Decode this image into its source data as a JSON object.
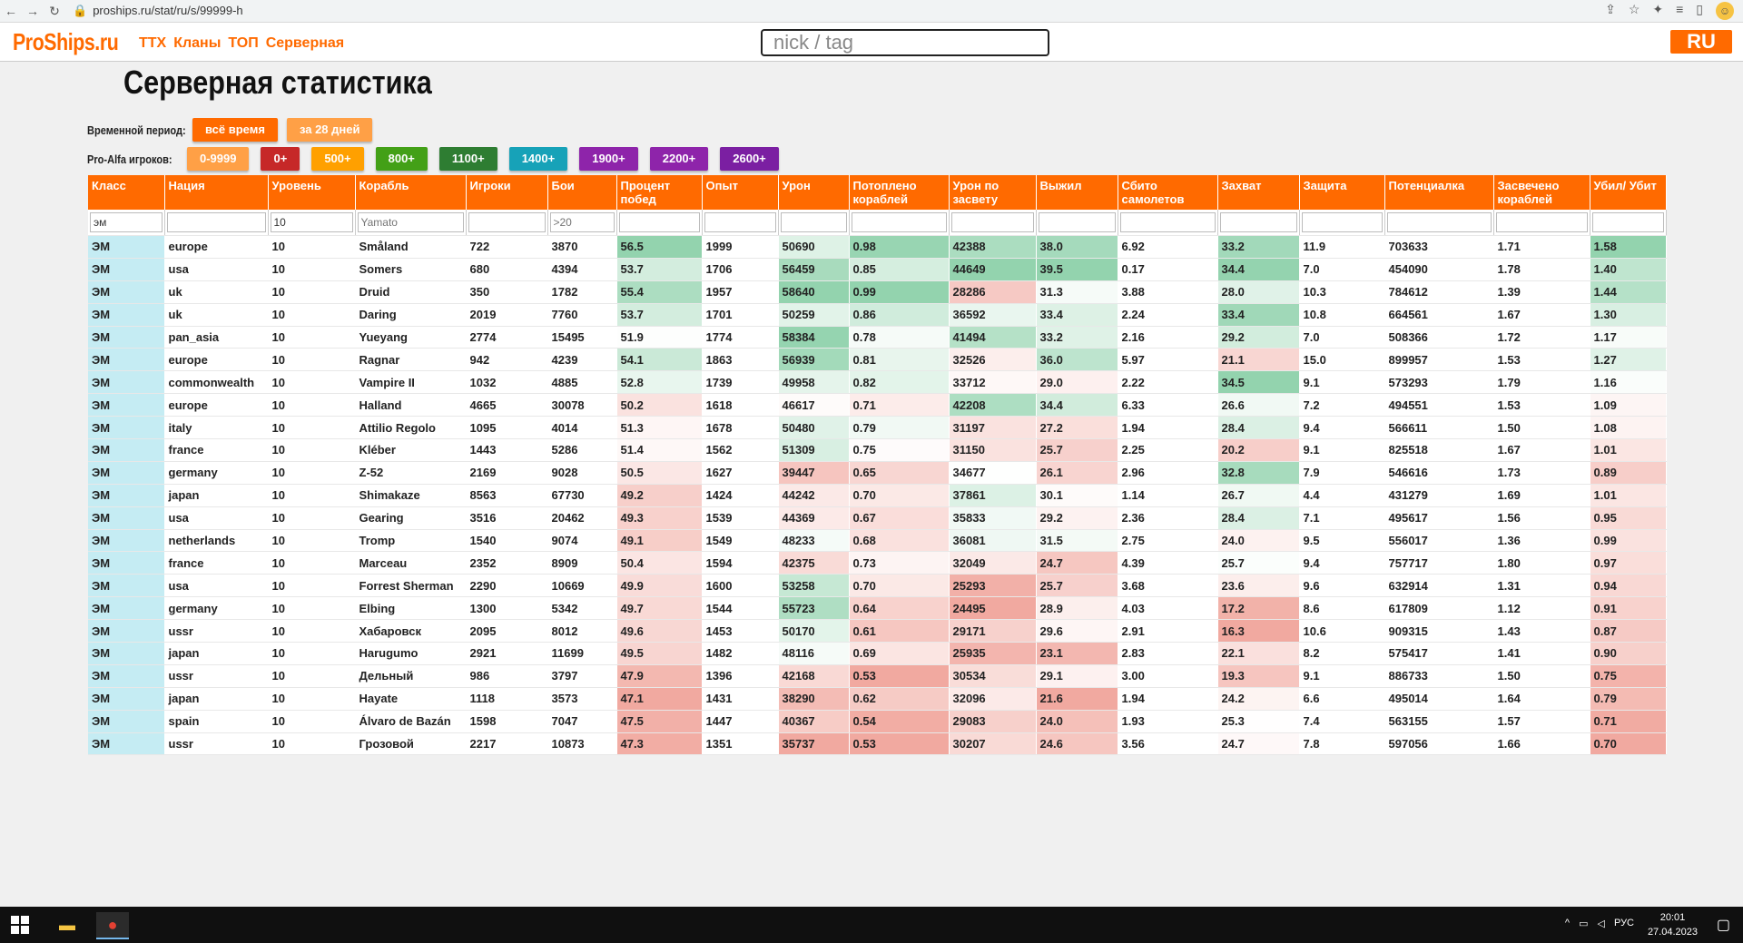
{
  "browser": {
    "url": "proships.ru/stat/ru/s/99999-h"
  },
  "header": {
    "logo": "ProShips.ru",
    "nav": [
      "ТТХ",
      "Кланы",
      "ТОП",
      "Серверная"
    ],
    "search_placeholder": "nick / tag",
    "lang": "RU"
  },
  "page": {
    "title": "Серверная статистика"
  },
  "filters": {
    "period_label": "Временной период:",
    "period_options": [
      {
        "label": "всё время",
        "color": "#ff6a00"
      },
      {
        "label": "за 28 дней",
        "color": "#ffa046"
      }
    ],
    "pa_label": "Pro-Alfa игроков:",
    "pa_options": [
      {
        "label": "0-9999",
        "color": "#ffa046"
      },
      {
        "label": "0+",
        "color": "#c62828"
      },
      {
        "label": "500+",
        "color": "#ffa000"
      },
      {
        "label": "800+",
        "color": "#43a017"
      },
      {
        "label": "1100+",
        "color": "#2e7d32"
      },
      {
        "label": "1400+",
        "color": "#17a2b8"
      },
      {
        "label": "1900+",
        "color": "#8e24aa"
      },
      {
        "label": "2200+",
        "color": "#8e24aa"
      },
      {
        "label": "2600+",
        "color": "#7b1fa2"
      }
    ]
  },
  "table": {
    "headers": [
      "Класс",
      "Нация",
      "Уровень",
      "Корабль",
      "Игроки",
      "Бои",
      "Процент побед",
      "Опыт",
      "Урон",
      "Потоплено кораблей",
      "Урон по засвету",
      "Выжил",
      "Сбито самолетов",
      "Захват",
      "Защита",
      "Потенциалка",
      "Засвечено кораблей",
      "Убил/ Убит"
    ],
    "filter_values": [
      "эм",
      "",
      "10",
      "",
      "",
      "",
      "",
      "",
      "",
      "",
      "",
      "",
      "",
      "",
      "",
      "",
      "",
      ""
    ],
    "filter_placeholders": [
      "",
      "",
      "",
      "Yamato",
      "",
      ">20",
      "",
      "",
      "",
      "",
      "",
      "",
      "",
      "",
      "",
      "",
      "",
      ""
    ],
    "rows": [
      [
        "ЭМ",
        "europe",
        "10",
        "Småland",
        "722",
        "3870",
        "56.5",
        "1999",
        "50690",
        "0.98",
        "42388",
        "38.0",
        "6.92",
        "33.2",
        "11.9",
        "703633",
        "1.71",
        "1.58"
      ],
      [
        "ЭМ",
        "usa",
        "10",
        "Somers",
        "680",
        "4394",
        "53.7",
        "1706",
        "56459",
        "0.85",
        "44649",
        "39.5",
        "0.17",
        "34.4",
        "7.0",
        "454090",
        "1.78",
        "1.40"
      ],
      [
        "ЭМ",
        "uk",
        "10",
        "Druid",
        "350",
        "1782",
        "55.4",
        "1957",
        "58640",
        "0.99",
        "28286",
        "31.3",
        "3.88",
        "28.0",
        "10.3",
        "784612",
        "1.39",
        "1.44"
      ],
      [
        "ЭМ",
        "uk",
        "10",
        "Daring",
        "2019",
        "7760",
        "53.7",
        "1701",
        "50259",
        "0.86",
        "36592",
        "33.4",
        "2.24",
        "33.4",
        "10.8",
        "664561",
        "1.67",
        "1.30"
      ],
      [
        "ЭМ",
        "pan_asia",
        "10",
        "Yueyang",
        "2774",
        "15495",
        "51.9",
        "1774",
        "58384",
        "0.78",
        "41494",
        "33.2",
        "2.16",
        "29.2",
        "7.0",
        "508366",
        "1.72",
        "1.17"
      ],
      [
        "ЭМ",
        "europe",
        "10",
        "Ragnar",
        "942",
        "4239",
        "54.1",
        "1863",
        "56939",
        "0.81",
        "32526",
        "36.0",
        "5.97",
        "21.1",
        "15.0",
        "899957",
        "1.53",
        "1.27"
      ],
      [
        "ЭМ",
        "commonwealth",
        "10",
        "Vampire II",
        "1032",
        "4885",
        "52.8",
        "1739",
        "49958",
        "0.82",
        "33712",
        "29.0",
        "2.22",
        "34.5",
        "9.1",
        "573293",
        "1.79",
        "1.16"
      ],
      [
        "ЭМ",
        "europe",
        "10",
        "Halland",
        "4665",
        "30078",
        "50.2",
        "1618",
        "46617",
        "0.71",
        "42208",
        "34.4",
        "6.33",
        "26.6",
        "7.2",
        "494551",
        "1.53",
        "1.09"
      ],
      [
        "ЭМ",
        "italy",
        "10",
        "Attilio Regolo",
        "1095",
        "4014",
        "51.3",
        "1678",
        "50480",
        "0.79",
        "31197",
        "27.2",
        "1.94",
        "28.4",
        "9.4",
        "566611",
        "1.50",
        "1.08"
      ],
      [
        "ЭМ",
        "france",
        "10",
        "Kléber",
        "1443",
        "5286",
        "51.4",
        "1562",
        "51309",
        "0.75",
        "31150",
        "25.7",
        "2.25",
        "20.2",
        "9.1",
        "825518",
        "1.67",
        "1.01"
      ],
      [
        "ЭМ",
        "germany",
        "10",
        "Z-52",
        "2169",
        "9028",
        "50.5",
        "1627",
        "39447",
        "0.65",
        "34677",
        "26.1",
        "2.96",
        "32.8",
        "7.9",
        "546616",
        "1.73",
        "0.89"
      ],
      [
        "ЭМ",
        "japan",
        "10",
        "Shimakaze",
        "8563",
        "67730",
        "49.2",
        "1424",
        "44242",
        "0.70",
        "37861",
        "30.1",
        "1.14",
        "26.7",
        "4.4",
        "431279",
        "1.69",
        "1.01"
      ],
      [
        "ЭМ",
        "usa",
        "10",
        "Gearing",
        "3516",
        "20462",
        "49.3",
        "1539",
        "44369",
        "0.67",
        "35833",
        "29.2",
        "2.36",
        "28.4",
        "7.1",
        "495617",
        "1.56",
        "0.95"
      ],
      [
        "ЭМ",
        "netherlands",
        "10",
        "Tromp",
        "1540",
        "9074",
        "49.1",
        "1549",
        "48233",
        "0.68",
        "36081",
        "31.5",
        "2.75",
        "24.0",
        "9.5",
        "556017",
        "1.36",
        "0.99"
      ],
      [
        "ЭМ",
        "france",
        "10",
        "Marceau",
        "2352",
        "8909",
        "50.4",
        "1594",
        "42375",
        "0.73",
        "32049",
        "24.7",
        "4.39",
        "25.7",
        "9.4",
        "757717",
        "1.80",
        "0.97"
      ],
      [
        "ЭМ",
        "usa",
        "10",
        "Forrest Sherman",
        "2290",
        "10669",
        "49.9",
        "1600",
        "53258",
        "0.70",
        "25293",
        "25.7",
        "3.68",
        "23.6",
        "9.6",
        "632914",
        "1.31",
        "0.94"
      ],
      [
        "ЭМ",
        "germany",
        "10",
        "Elbing",
        "1300",
        "5342",
        "49.7",
        "1544",
        "55723",
        "0.64",
        "24495",
        "28.9",
        "4.03",
        "17.2",
        "8.6",
        "617809",
        "1.12",
        "0.91"
      ],
      [
        "ЭМ",
        "ussr",
        "10",
        "Хабаровск",
        "2095",
        "8012",
        "49.6",
        "1453",
        "50170",
        "0.61",
        "29171",
        "29.6",
        "2.91",
        "16.3",
        "10.6",
        "909315",
        "1.43",
        "0.87"
      ],
      [
        "ЭМ",
        "japan",
        "10",
        "Harugumo",
        "2921",
        "11699",
        "49.5",
        "1482",
        "48116",
        "0.69",
        "25935",
        "23.1",
        "2.83",
        "22.1",
        "8.2",
        "575417",
        "1.41",
        "0.90"
      ],
      [
        "ЭМ",
        "ussr",
        "10",
        "Дельный",
        "986",
        "3797",
        "47.9",
        "1396",
        "42168",
        "0.53",
        "30534",
        "29.1",
        "3.00",
        "19.3",
        "9.1",
        "886733",
        "1.50",
        "0.75"
      ],
      [
        "ЭМ",
        "japan",
        "10",
        "Hayate",
        "1118",
        "3573",
        "47.1",
        "1431",
        "38290",
        "0.62",
        "32096",
        "21.6",
        "1.94",
        "24.2",
        "6.6",
        "495014",
        "1.64",
        "0.79"
      ],
      [
        "ЭМ",
        "spain",
        "10",
        "Álvaro de Bazán",
        "1598",
        "7047",
        "47.5",
        "1447",
        "40367",
        "0.54",
        "29083",
        "24.0",
        "1.93",
        "25.3",
        "7.4",
        "563155",
        "1.57",
        "0.71"
      ],
      [
        "ЭМ",
        "ussr",
        "10",
        "Грозовой",
        "2217",
        "10873",
        "47.3",
        "1351",
        "35737",
        "0.53",
        "30207",
        "24.6",
        "3.56",
        "24.7",
        "7.8",
        "597056",
        "1.66",
        "0.70"
      ]
    ]
  },
  "taskbar": {
    "time": "20:01",
    "date": "27.04.2023",
    "lang": "РУС"
  }
}
